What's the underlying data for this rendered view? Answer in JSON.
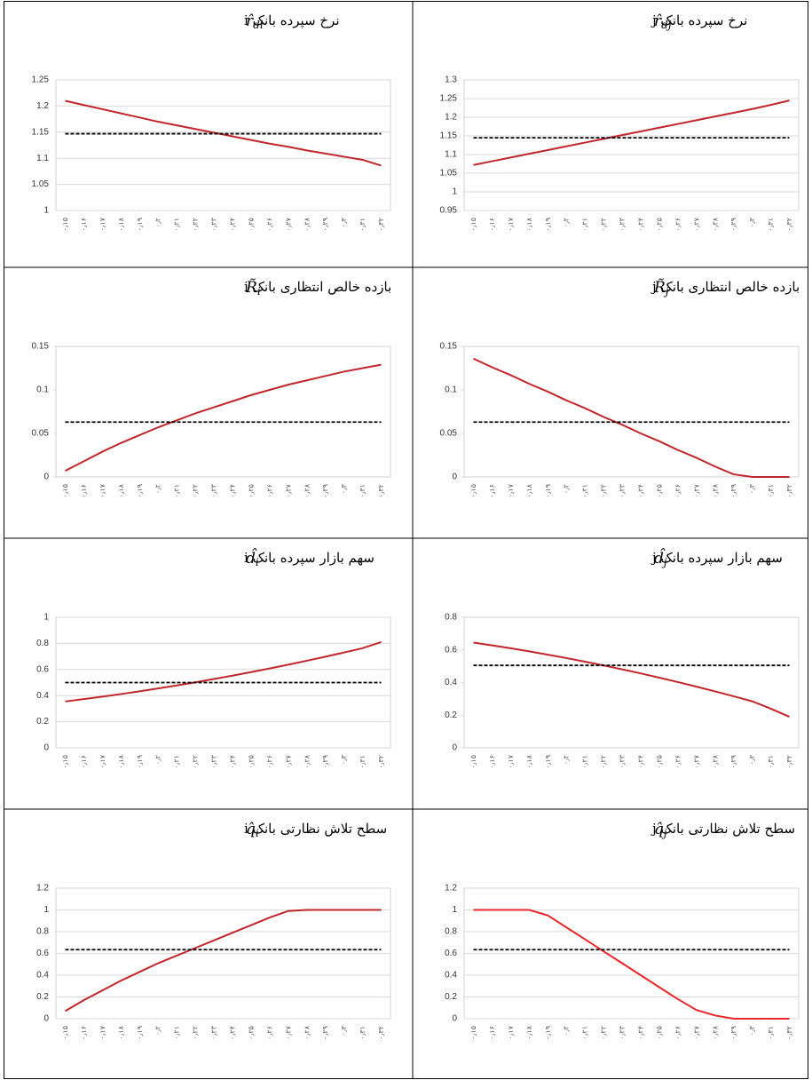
{
  "chart_data": [
    {
      "type": "line",
      "title": "نرخ سپرده بانک i",
      "symbol": "r̂",
      "symbol_sub": "di",
      "categories": [
        "۰٫۱۵",
        "۰٫۱۶",
        "۰٫۱۷",
        "۰٫۱۸",
        "۰٫۱۹",
        "۰٫۲",
        "۰٫۲۱",
        "۰٫۲۲",
        "۰٫۲۳",
        "۰٫۲۴",
        "۰٫۲۵",
        "۰٫۲۶",
        "۰٫۲۷",
        "۰٫۲۸",
        "۰٫۲۹",
        "۰٫۳",
        "۰٫۳۱",
        "۰٫۳۲"
      ],
      "ylim": [
        1,
        1.25
      ],
      "yticks": [
        1,
        1.05,
        1.1,
        1.15,
        1.2,
        1.25
      ],
      "grid": true,
      "series": [
        {
          "color": "#c0262b",
          "values": [
            1.21,
            1.202,
            1.194,
            1.186,
            1.178,
            1.17,
            1.163,
            1.156,
            1.149,
            1.142,
            1.135,
            1.128,
            1.122,
            1.115,
            1.109,
            1.103,
            1.097,
            1.086
          ]
        },
        {
          "color": "#000000",
          "dash": true,
          "values": [
            1.147,
            1.147,
            1.147,
            1.147,
            1.147,
            1.147,
            1.147,
            1.147,
            1.147,
            1.147,
            1.147,
            1.147,
            1.147,
            1.147,
            1.147,
            1.147,
            1.147,
            1.147
          ]
        }
      ]
    },
    {
      "type": "line",
      "title": "نرخ سپرده بانک j",
      "symbol": "r̂",
      "symbol_sub": "dj",
      "categories": [
        "۰٫۱۵",
        "۰٫۱۶",
        "۰٫۱۷",
        "۰٫۱۸",
        "۰٫۱۹",
        "۰٫۲",
        "۰٫۲۱",
        "۰٫۲۲",
        "۰٫۲۳",
        "۰٫۲۴",
        "۰٫۲۵",
        "۰٫۲۶",
        "۰٫۲۷",
        "۰٫۲۸",
        "۰٫۲۹",
        "۰٫۳",
        "۰٫۳۱",
        "۰٫۳۲"
      ],
      "ylim": [
        0.95,
        1.3
      ],
      "yticks": [
        0.95,
        1,
        1.05,
        1.1,
        1.15,
        1.2,
        1.25,
        1.3
      ],
      "grid": true,
      "series": [
        {
          "color": "#c0262b",
          "values": [
            1.072,
            1.082,
            1.092,
            1.102,
            1.112,
            1.122,
            1.132,
            1.142,
            1.152,
            1.162,
            1.172,
            1.182,
            1.192,
            1.202,
            1.212,
            1.222,
            1.233,
            1.245
          ]
        },
        {
          "color": "#000000",
          "dash": true,
          "values": [
            1.145,
            1.145,
            1.145,
            1.145,
            1.145,
            1.145,
            1.145,
            1.145,
            1.145,
            1.145,
            1.145,
            1.145,
            1.145,
            1.145,
            1.145,
            1.145,
            1.145,
            1.145
          ]
        }
      ]
    },
    {
      "type": "line",
      "title": "بازده خالص انتظاری بانک i",
      "symbol": "R̃",
      "symbol_sub": "i",
      "categories": [
        "۰٫۱۵",
        "۰٫۱۶",
        "۰٫۱۷",
        "۰٫۱۸",
        "۰٫۱۹",
        "۰٫۲",
        "۰٫۲۱",
        "۰٫۲۲",
        "۰٫۲۳",
        "۰٫۲۴",
        "۰٫۲۵",
        "۰٫۲۶",
        "۰٫۲۷",
        "۰٫۲۸",
        "۰٫۲۹",
        "۰٫۳",
        "۰٫۳۱",
        "۰٫۳۲"
      ],
      "ylim": [
        0,
        0.15
      ],
      "yticks": [
        0,
        0.05,
        0.1,
        0.15
      ],
      "grid": false,
      "series": [
        {
          "color": "#c0262b",
          "values": [
            0.007,
            0.018,
            0.029,
            0.039,
            0.048,
            0.057,
            0.065,
            0.073,
            0.08,
            0.087,
            0.094,
            0.1,
            0.106,
            0.111,
            0.116,
            0.121,
            0.125,
            0.129
          ]
        },
        {
          "color": "#000000",
          "dash": true,
          "values": [
            0.063,
            0.063,
            0.063,
            0.063,
            0.063,
            0.063,
            0.063,
            0.063,
            0.063,
            0.063,
            0.063,
            0.063,
            0.063,
            0.063,
            0.063,
            0.063,
            0.063,
            0.063
          ]
        }
      ]
    },
    {
      "type": "line",
      "title": "بازده خالص انتظاری بانک j",
      "symbol": "R̃",
      "symbol_sub": "j",
      "categories": [
        "۰٫۱۵",
        "۰٫۱۶",
        "۰٫۱۷",
        "۰٫۱۸",
        "۰٫۱۹",
        "۰٫۲",
        "۰٫۲۱",
        "۰٫۲۲",
        "۰٫۲۳",
        "۰٫۲۴",
        "۰٫۲۵",
        "۰٫۲۶",
        "۰٫۲۷",
        "۰٫۲۸",
        "۰٫۲۹",
        "۰٫۳",
        "۰٫۳۱",
        "۰٫۳۲"
      ],
      "ylim": [
        0,
        0.15
      ],
      "yticks": [
        0,
        0.05,
        0.1,
        0.15
      ],
      "grid": false,
      "series": [
        {
          "color": "#c0262b",
          "values": [
            0.136,
            0.126,
            0.117,
            0.107,
            0.098,
            0.088,
            0.079,
            0.069,
            0.06,
            0.05,
            0.041,
            0.031,
            0.022,
            0.012,
            0.003,
            0,
            0,
            0
          ]
        },
        {
          "color": "#000000",
          "dash": true,
          "values": [
            0.063,
            0.063,
            0.063,
            0.063,
            0.063,
            0.063,
            0.063,
            0.063,
            0.063,
            0.063,
            0.063,
            0.063,
            0.063,
            0.063,
            0.063,
            0.063,
            0.063,
            0.063
          ]
        }
      ]
    },
    {
      "type": "line",
      "title": "سهم بازار سپرده بانک i",
      "symbol": "d̂",
      "symbol_sub": "i",
      "categories": [
        "۰٫۱۵",
        "۰٫۱۶",
        "۰٫۱۷",
        "۰٫۱۸",
        "۰٫۱۹",
        "۰٫۲",
        "۰٫۲۱",
        "۰٫۲۲",
        "۰٫۲۳",
        "۰٫۲۴",
        "۰٫۲۵",
        "۰٫۲۶",
        "۰٫۲۷",
        "۰٫۲۸",
        "۰٫۲۹",
        "۰٫۳",
        "۰٫۳۱",
        "۰٫۳۲"
      ],
      "ylim": [
        0,
        1
      ],
      "yticks": [
        0,
        0.2,
        0.4,
        0.6,
        0.8,
        1
      ],
      "grid": true,
      "series": [
        {
          "color": "#c0262b",
          "values": [
            0.355,
            0.373,
            0.392,
            0.412,
            0.433,
            0.455,
            0.478,
            0.502,
            0.527,
            0.553,
            0.58,
            0.608,
            0.637,
            0.667,
            0.698,
            0.73,
            0.763,
            0.81
          ]
        },
        {
          "color": "#000000",
          "dash": true,
          "values": [
            0.5,
            0.5,
            0.5,
            0.5,
            0.5,
            0.5,
            0.5,
            0.5,
            0.5,
            0.5,
            0.5,
            0.5,
            0.5,
            0.5,
            0.5,
            0.5,
            0.5,
            0.5
          ]
        }
      ]
    },
    {
      "type": "line",
      "title": "سهم بازار سپرده بانک j",
      "symbol": "d̂",
      "symbol_sub": "j",
      "categories": [
        "۰٫۱۵",
        "۰٫۱۶",
        "۰٫۱۷",
        "۰٫۱۸",
        "۰٫۱۹",
        "۰٫۲",
        "۰٫۲۱",
        "۰٫۲۲",
        "۰٫۲۳",
        "۰٫۲۴",
        "۰٫۲۵",
        "۰٫۲۶",
        "۰٫۲۷",
        "۰٫۲۸",
        "۰٫۲۹",
        "۰٫۳",
        "۰٫۳۱",
        "۰٫۳۲"
      ],
      "ylim": [
        0,
        0.8
      ],
      "yticks": [
        0,
        0.2,
        0.4,
        0.6,
        0.8
      ],
      "grid": false,
      "series": [
        {
          "color": "#c0262b",
          "values": [
            0.645,
            0.628,
            0.61,
            0.591,
            0.571,
            0.55,
            0.528,
            0.505,
            0.481,
            0.456,
            0.43,
            0.403,
            0.375,
            0.346,
            0.316,
            0.285,
            0.24,
            0.19
          ]
        },
        {
          "color": "#000000",
          "dash": true,
          "values": [
            0.505,
            0.505,
            0.505,
            0.505,
            0.505,
            0.505,
            0.505,
            0.505,
            0.505,
            0.505,
            0.505,
            0.505,
            0.505,
            0.505,
            0.505,
            0.505,
            0.505,
            0.505
          ]
        }
      ]
    },
    {
      "type": "line",
      "title": "سطح تلاش نظارتی بانک i",
      "symbol": "q̂",
      "symbol_sub": "i",
      "categories": [
        "۰٫۱۵",
        "۰٫۱۶",
        "۰٫۱۷",
        "۰٫۱۸",
        "۰٫۱۹",
        "۰٫۲",
        "۰٫۲۱",
        "۰٫۲۲",
        "۰٫۲۳",
        "۰٫۲۴",
        "۰٫۲۵",
        "۰٫۲۶",
        "۰٫۲۷",
        "۰٫۲۸",
        "۰٫۲۹",
        "۰٫۳",
        "۰٫۳۱",
        "۰٫۳۲"
      ],
      "ylim": [
        0,
        1.2
      ],
      "yticks": [
        0,
        0.2,
        0.4,
        0.6,
        0.8,
        1,
        1.2
      ],
      "grid": true,
      "series": [
        {
          "color": "#c0262b",
          "values": [
            0.07,
            0.17,
            0.26,
            0.35,
            0.43,
            0.51,
            0.58,
            0.65,
            0.72,
            0.79,
            0.86,
            0.93,
            0.99,
            1,
            1,
            1,
            1,
            1
          ]
        },
        {
          "color": "#000000",
          "dash": true,
          "values": [
            0.635,
            0.635,
            0.635,
            0.635,
            0.635,
            0.635,
            0.635,
            0.635,
            0.635,
            0.635,
            0.635,
            0.635,
            0.635,
            0.635,
            0.635,
            0.635,
            0.635,
            0.635
          ]
        }
      ]
    },
    {
      "type": "line",
      "title": "سطح تلاش نظارتی بانک j",
      "symbol": "q̂",
      "symbol_sub": "j",
      "categories": [
        "۰٫۱۵",
        "۰٫۱۶",
        "۰٫۱۷",
        "۰٫۱۸",
        "۰٫۱۹",
        "۰٫۲",
        "۰٫۲۱",
        "۰٫۲۲",
        "۰٫۲۳",
        "۰٫۲۴",
        "۰٫۲۵",
        "۰٫۲۶",
        "۰٫۲۷",
        "۰٫۲۸",
        "۰٫۲۹",
        "۰٫۳",
        "۰٫۳۱",
        "۰٫۳۲"
      ],
      "ylim": [
        0,
        1.2
      ],
      "yticks": [
        0,
        0.2,
        0.4,
        0.6,
        0.8,
        1,
        1.2
      ],
      "grid": true,
      "series": [
        {
          "color": "#e8262b",
          "values": [
            1,
            1,
            1,
            1,
            0.95,
            0.84,
            0.73,
            0.62,
            0.51,
            0.4,
            0.29,
            0.18,
            0.08,
            0.03,
            0,
            0,
            0,
            0
          ]
        },
        {
          "color": "#000000",
          "dash": true,
          "values": [
            0.635,
            0.635,
            0.635,
            0.635,
            0.635,
            0.635,
            0.635,
            0.635,
            0.635,
            0.635,
            0.635,
            0.635,
            0.635,
            0.635,
            0.635,
            0.635,
            0.635,
            0.635
          ]
        }
      ]
    }
  ]
}
